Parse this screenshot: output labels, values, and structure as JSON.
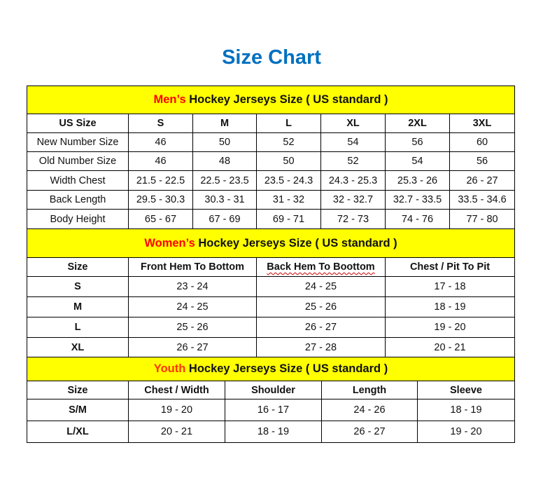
{
  "title": "Size Chart",
  "colors": {
    "title": "#0070C0",
    "section_bg": "#FFFF00",
    "mens_word": "#FF0000",
    "womens_word": "#FF0000",
    "youth_word": "#FF3300"
  },
  "mens": {
    "heading_colored": "Men’s",
    "heading_rest": " Hockey Jerseys Size ( US standard )",
    "columns": [
      "US Size",
      "S",
      "M",
      "L",
      "XL",
      "2XL",
      "3XL"
    ],
    "rows": [
      [
        "New Number Size",
        "46",
        "50",
        "52",
        "54",
        "56",
        "60"
      ],
      [
        "Old Number Size",
        "46",
        "48",
        "50",
        "52",
        "54",
        "56"
      ],
      [
        "Width Chest",
        "21.5 - 22.5",
        "22.5 - 23.5",
        "23.5 - 24.3",
        "24.3 - 25.3",
        "25.3 - 26",
        "26 - 27"
      ],
      [
        "Back Length",
        "29.5 - 30.3",
        "30.3 - 31",
        "31 - 32",
        "32 - 32.7",
        "32.7 - 33.5",
        "33.5 - 34.6"
      ],
      [
        "Body Height",
        "65 - 67",
        "67 - 69",
        "69 - 71",
        "72 - 73",
        "74 - 76",
        "77 - 80"
      ]
    ]
  },
  "womens": {
    "heading_colored": "Women’s",
    "heading_rest": " Hockey Jerseys Size ( US standard )",
    "columns": [
      "Size",
      "Front Hem To Bottom",
      "Back Hem To Boottom",
      "Chest / Pit To Pit"
    ],
    "rows": [
      [
        "S",
        "23 - 24",
        "24 - 25",
        "17 - 18"
      ],
      [
        "M",
        "24 - 25",
        "25 - 26",
        "18 - 19"
      ],
      [
        "L",
        "25 - 26",
        "26 - 27",
        "19 - 20"
      ],
      [
        "XL",
        "26 - 27",
        "27 - 28",
        "20 - 21"
      ]
    ]
  },
  "youth": {
    "heading_colored": "Youth",
    "heading_rest": " Hockey Jerseys Size ( US standard )",
    "columns": [
      "Size",
      "Chest / Width",
      "Shoulder",
      "Length",
      "Sleeve"
    ],
    "rows": [
      [
        "S/M",
        "19 - 20",
        "16 - 17",
        "24 - 26",
        "18 - 19"
      ],
      [
        "L/XL",
        "20 - 21",
        "18 - 19",
        "26 - 27",
        "19 - 20"
      ]
    ]
  }
}
